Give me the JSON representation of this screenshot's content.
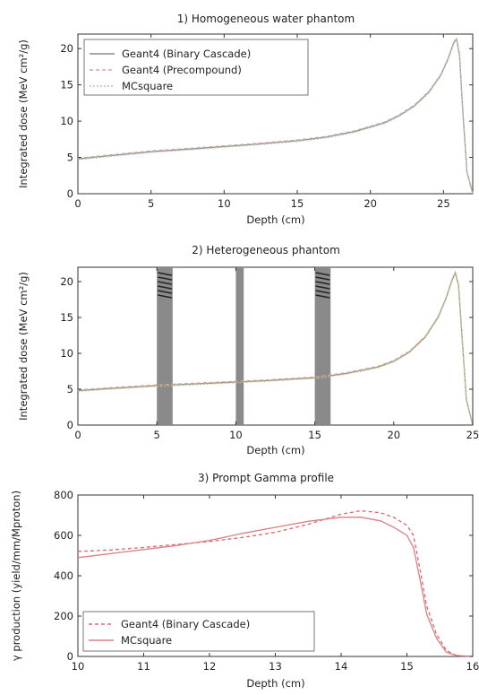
{
  "chart_data": [
    {
      "type": "line",
      "title": "1) Homogeneous water phantom",
      "xlabel": "Depth (cm)",
      "ylabel": "Integrated dose (MeV cm²/g)",
      "xlim": [
        0,
        27
      ],
      "ylim": [
        0,
        22
      ],
      "xticks": [
        0,
        5,
        10,
        15,
        20,
        25
      ],
      "yticks": [
        0,
        5,
        10,
        15,
        20
      ],
      "grid": false,
      "legend_position": "top-left",
      "series": [
        {
          "name": "Geant4 (Binary Cascade)",
          "color": "#8c8c8c",
          "dash": "none",
          "x": [
            0,
            2,
            5,
            8,
            10,
            12,
            15,
            17,
            19,
            21,
            22,
            23,
            24,
            24.8,
            25.3,
            25.7,
            25.9,
            26.1,
            26.3,
            26.6,
            27
          ],
          "y": [
            4.8,
            5.2,
            5.8,
            6.2,
            6.5,
            6.8,
            7.3,
            7.8,
            8.6,
            9.8,
            10.8,
            12.1,
            14.0,
            16.3,
            18.5,
            20.8,
            21.3,
            19.0,
            12.0,
            3.0,
            0
          ]
        },
        {
          "name": "Geant4 (Precompound)",
          "color": "#d9a0a0",
          "dash": "4,3",
          "x": [
            0,
            2,
            5,
            8,
            10,
            12,
            15,
            17,
            19,
            21,
            22,
            23,
            24,
            24.8,
            25.3,
            25.7,
            25.9,
            26.1,
            26.3,
            26.6,
            27
          ],
          "y": [
            4.9,
            5.3,
            5.9,
            6.3,
            6.6,
            6.9,
            7.4,
            7.9,
            8.7,
            9.9,
            10.9,
            12.2,
            14.1,
            16.4,
            18.6,
            20.9,
            21.4,
            19.1,
            12.1,
            3.1,
            0
          ]
        },
        {
          "name": "MCsquare",
          "color": "#a8c8a8",
          "dash": "2,2",
          "x": [
            0,
            2,
            5,
            8,
            10,
            12,
            15,
            17,
            19,
            21,
            22,
            23,
            24,
            24.8,
            25.3,
            25.7,
            25.9,
            26.1,
            26.3,
            26.6,
            27
          ],
          "y": [
            4.7,
            5.1,
            5.7,
            6.1,
            6.4,
            6.7,
            7.2,
            7.7,
            8.5,
            9.7,
            10.7,
            12.0,
            13.9,
            16.2,
            18.4,
            20.7,
            21.2,
            18.9,
            11.9,
            2.9,
            0
          ]
        }
      ]
    },
    {
      "type": "line",
      "title": "2) Heterogeneous phantom",
      "xlabel": "Depth (cm)",
      "ylabel": "Integrated dose (MeV cm²/g)",
      "xlim": [
        0,
        25
      ],
      "ylim": [
        0,
        22
      ],
      "xticks": [
        0,
        5,
        10,
        15,
        20,
        25
      ],
      "yticks": [
        0,
        5,
        10,
        15,
        20
      ],
      "grid": false,
      "bands": [
        {
          "x0": 5.0,
          "x1": 6.0,
          "color": "#8a8a8a",
          "hatched": true
        },
        {
          "x0": 10.0,
          "x1": 10.5,
          "color": "#8a8a8a",
          "hatched": false
        },
        {
          "x0": 15.0,
          "x1": 16.0,
          "color": "#8a8a8a",
          "hatched": true
        }
      ],
      "series": [
        {
          "name": "Geant4 (Binary Cascade)",
          "color": "#8c8c8c",
          "dash": "none",
          "x": [
            0,
            2,
            5,
            8,
            10,
            12,
            15,
            17,
            19,
            20,
            21,
            22,
            22.8,
            23.3,
            23.7,
            23.9,
            24.1,
            24.3,
            24.6,
            25
          ],
          "y": [
            4.8,
            5.1,
            5.5,
            5.8,
            6.0,
            6.2,
            6.6,
            7.2,
            8.1,
            8.9,
            10.2,
            12.3,
            15.0,
            17.6,
            20.3,
            21.2,
            19.5,
            13.0,
            3.5,
            0
          ]
        },
        {
          "name": "Geant4 (Precompound)",
          "color": "#d9a0a0",
          "dash": "4,3",
          "x": [
            0,
            2,
            5,
            8,
            10,
            12,
            15,
            17,
            19,
            20,
            21,
            22,
            22.8,
            23.3,
            23.7,
            23.9,
            24.1,
            24.3,
            24.6,
            25
          ],
          "y": [
            4.9,
            5.2,
            5.6,
            5.9,
            6.1,
            6.3,
            6.7,
            7.3,
            8.2,
            9.0,
            10.3,
            12.4,
            15.1,
            17.7,
            20.4,
            21.3,
            19.6,
            13.1,
            3.6,
            0
          ]
        },
        {
          "name": "MCsquare",
          "color": "#b8cc80",
          "dash": "2,2",
          "x": [
            0,
            2,
            5,
            8,
            10,
            12,
            15,
            17,
            19,
            20,
            21,
            22,
            22.8,
            23.3,
            23.7,
            23.9,
            24.1,
            24.3,
            24.6,
            25
          ],
          "y": [
            4.7,
            5.0,
            5.4,
            5.7,
            5.9,
            6.1,
            6.5,
            7.1,
            8.0,
            8.8,
            10.1,
            12.2,
            14.9,
            17.5,
            20.2,
            21.1,
            19.4,
            12.9,
            3.4,
            0
          ]
        }
      ]
    },
    {
      "type": "line",
      "title": "3) Prompt Gamma profile",
      "xlabel": "Depth (cm)",
      "ylabel": "γ production (yield/mm/Mproton)",
      "xlim": [
        10,
        16
      ],
      "ylim": [
        0,
        800
      ],
      "xticks": [
        10,
        11,
        12,
        13,
        14,
        15,
        16
      ],
      "yticks": [
        0,
        200,
        400,
        600,
        800
      ],
      "grid": false,
      "legend_position": "bottom-left",
      "series": [
        {
          "name": "Geant4 (Binary Cascade)",
          "color": "#d96a6a",
          "dash": "4,3",
          "x": [
            10,
            10.5,
            11,
            11.5,
            12,
            12.5,
            13,
            13.5,
            14,
            14.3,
            14.6,
            14.8,
            15.0,
            15.1,
            15.2,
            15.3,
            15.45,
            15.6,
            15.75,
            16
          ],
          "y": [
            520,
            528,
            540,
            555,
            570,
            590,
            615,
            655,
            705,
            722,
            712,
            690,
            650,
            600,
            430,
            250,
            110,
            30,
            5,
            0
          ]
        },
        {
          "name": "MCsquare",
          "color": "#d98080",
          "dash": "none",
          "x": [
            10,
            10.5,
            11,
            11.5,
            12,
            12.5,
            13,
            13.5,
            14,
            14.3,
            14.6,
            14.8,
            15.0,
            15.1,
            15.2,
            15.3,
            15.45,
            15.6,
            15.75,
            16
          ],
          "y": [
            490,
            510,
            530,
            550,
            575,
            610,
            640,
            670,
            690,
            690,
            672,
            640,
            600,
            540,
            380,
            210,
            90,
            20,
            5,
            0
          ]
        }
      ]
    }
  ]
}
